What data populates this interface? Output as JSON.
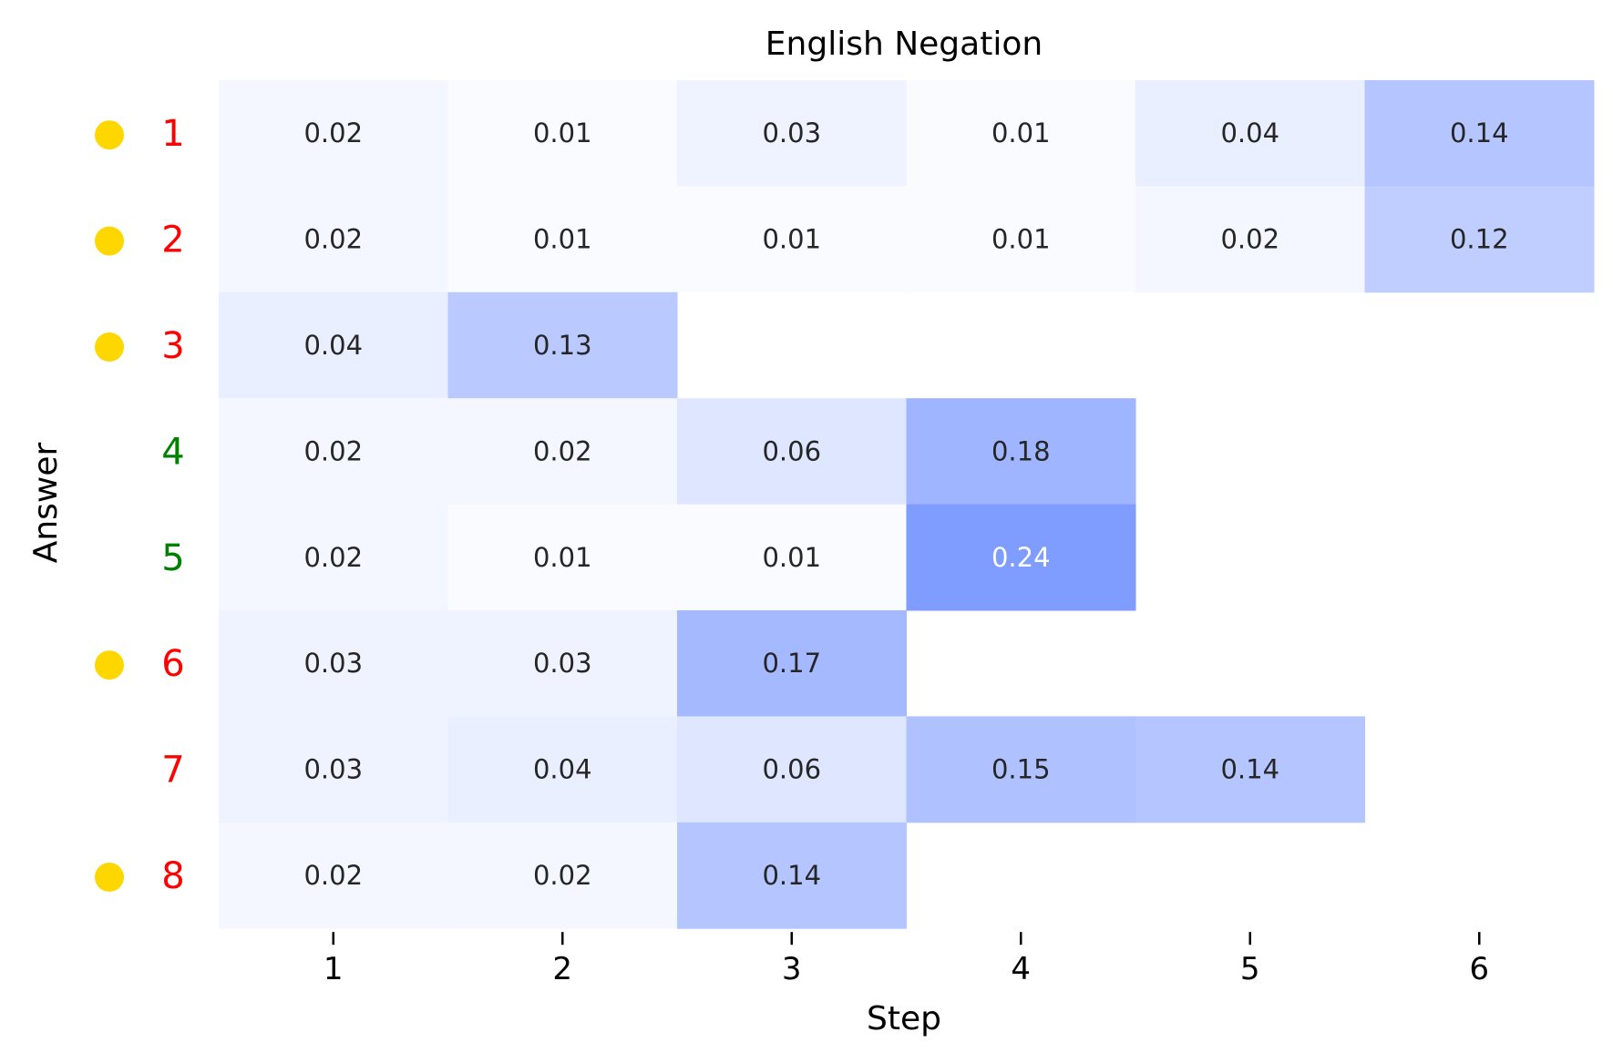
{
  "chart_data": {
    "type": "heatmap",
    "title": "English Negation",
    "xlabel": "Step",
    "ylabel": "Answer",
    "x_categories": [
      "1",
      "2",
      "3",
      "4",
      "5",
      "6"
    ],
    "rows": [
      {
        "label": "1",
        "label_color": "#ff0000",
        "marker": true,
        "values": [
          0.02,
          0.01,
          0.03,
          0.01,
          0.04,
          0.14
        ]
      },
      {
        "label": "2",
        "label_color": "#ff0000",
        "marker": true,
        "values": [
          0.02,
          0.01,
          0.01,
          0.01,
          0.02,
          0.12
        ]
      },
      {
        "label": "3",
        "label_color": "#ff0000",
        "marker": true,
        "values": [
          0.04,
          0.13,
          null,
          null,
          null,
          null
        ]
      },
      {
        "label": "4",
        "label_color": "#008000",
        "marker": false,
        "values": [
          0.02,
          0.02,
          0.06,
          0.18,
          null,
          null
        ]
      },
      {
        "label": "5",
        "label_color": "#008000",
        "marker": false,
        "values": [
          0.02,
          0.01,
          0.01,
          0.24,
          null,
          null
        ]
      },
      {
        "label": "6",
        "label_color": "#ff0000",
        "marker": true,
        "values": [
          0.03,
          0.03,
          0.17,
          null,
          null,
          null
        ]
      },
      {
        "label": "7",
        "label_color": "#ff0000",
        "marker": false,
        "values": [
          0.03,
          0.04,
          0.06,
          0.15,
          0.14,
          null
        ]
      },
      {
        "label": "8",
        "label_color": "#ff0000",
        "marker": true,
        "values": [
          0.02,
          0.02,
          0.14,
          null,
          null,
          null
        ]
      }
    ],
    "marker_color": "#ffd700",
    "colormap": {
      "low": "#ffffff",
      "high": "#7f9cff",
      "vmin": 0.0,
      "vmax": 0.24
    },
    "grid": false
  }
}
